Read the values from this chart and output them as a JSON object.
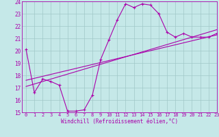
{
  "xlabel": "Windchill (Refroidissement éolien,°C)",
  "background_color": "#c5e8e8",
  "line_color": "#aa00aa",
  "grid_color": "#a0c8c8",
  "hours": [
    0,
    1,
    2,
    3,
    4,
    5,
    6,
    7,
    8,
    9,
    10,
    11,
    12,
    13,
    14,
    15,
    16,
    17,
    18,
    19,
    20,
    21,
    22,
    23
  ],
  "main_data": [
    20.1,
    16.6,
    17.7,
    17.5,
    17.2,
    15.1,
    15.1,
    15.2,
    16.4,
    19.3,
    20.9,
    22.5,
    23.8,
    23.5,
    23.8,
    23.7,
    23.0,
    21.5,
    21.1,
    21.4,
    21.1,
    21.1,
    21.1,
    21.4
  ],
  "trend1": [
    17.6,
    17.76,
    17.92,
    18.08,
    18.24,
    18.4,
    18.56,
    18.72,
    18.88,
    19.04,
    19.2,
    19.36,
    19.52,
    19.68,
    19.84,
    20.0,
    20.16,
    20.32,
    20.48,
    20.64,
    20.8,
    20.96,
    21.12,
    21.28
  ],
  "trend2": [
    17.1,
    17.3,
    17.5,
    17.7,
    17.9,
    18.1,
    18.3,
    18.5,
    18.7,
    18.9,
    19.1,
    19.3,
    19.5,
    19.7,
    19.9,
    20.1,
    20.3,
    20.5,
    20.7,
    20.9,
    21.1,
    21.3,
    21.5,
    21.7
  ],
  "ylim": [
    15,
    24
  ],
  "xlim": [
    -0.5,
    23
  ],
  "yticks": [
    15,
    16,
    17,
    18,
    19,
    20,
    21,
    22,
    23,
    24
  ],
  "xticks": [
    0,
    1,
    2,
    3,
    4,
    5,
    6,
    7,
    8,
    9,
    10,
    11,
    12,
    13,
    14,
    15,
    16,
    17,
    18,
    19,
    20,
    21,
    22,
    23
  ]
}
